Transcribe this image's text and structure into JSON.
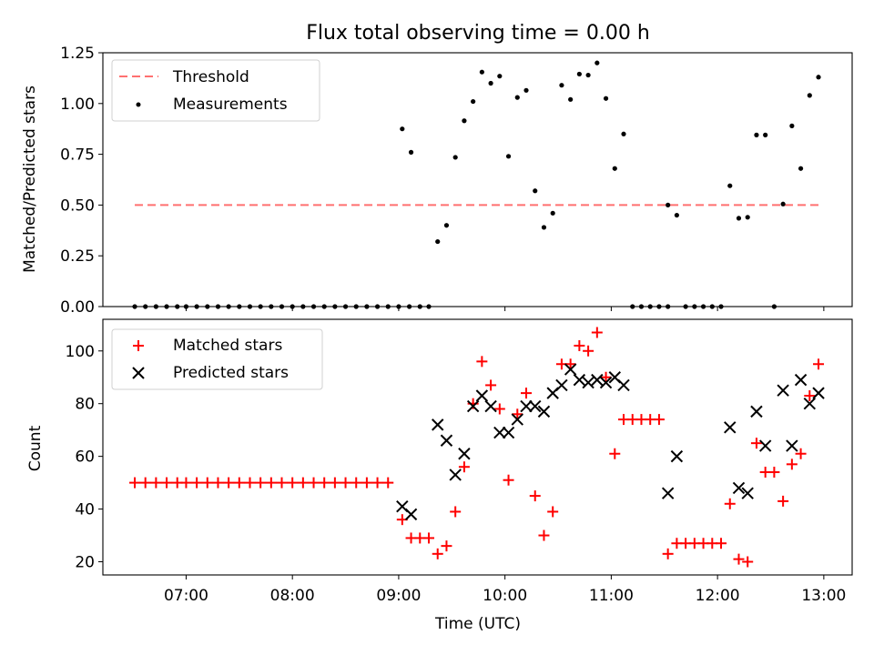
{
  "figure": {
    "title": "Flux total observing time = 0.00 h"
  },
  "chart_data": [
    {
      "type": "scatter",
      "panel": "top",
      "ylabel": "Matched/Predicted stars",
      "ylim": [
        0,
        1.25
      ],
      "yticks": [
        "0.00",
        "0.25",
        "0.50",
        "0.75",
        "1.00",
        "1.25"
      ],
      "xlim": [
        "06:13",
        "13:16"
      ],
      "legend_placement": "upper left",
      "threshold": {
        "name": "Threshold",
        "color": "#ff7070",
        "style": "dashed",
        "y": 0.5,
        "x": [
          "06:31",
          "12:57"
        ]
      },
      "series": [
        {
          "name": "Measurements",
          "color": "#000000",
          "marker": "dot",
          "points": [
            [
              "06:31",
              0.0
            ],
            [
              "06:37",
              0.0
            ],
            [
              "06:43",
              0.0
            ],
            [
              "06:49",
              0.0
            ],
            [
              "06:55",
              0.0
            ],
            [
              "07:00",
              0.0
            ],
            [
              "07:06",
              0.0
            ],
            [
              "07:12",
              0.0
            ],
            [
              "07:18",
              0.0
            ],
            [
              "07:24",
              0.0
            ],
            [
              "07:30",
              0.0
            ],
            [
              "07:36",
              0.0
            ],
            [
              "07:42",
              0.0
            ],
            [
              "07:48",
              0.0
            ],
            [
              "07:54",
              0.0
            ],
            [
              "08:00",
              0.0
            ],
            [
              "08:06",
              0.0
            ],
            [
              "08:12",
              0.0
            ],
            [
              "08:18",
              0.0
            ],
            [
              "08:24",
              0.0
            ],
            [
              "08:30",
              0.0
            ],
            [
              "08:36",
              0.0
            ],
            [
              "08:42",
              0.0
            ],
            [
              "08:48",
              0.0
            ],
            [
              "08:54",
              0.0
            ],
            [
              "09:00",
              0.0
            ],
            [
              "09:06",
              0.0
            ],
            [
              "09:02",
              0.875
            ],
            [
              "09:07",
              0.76
            ],
            [
              "09:12",
              0.0
            ],
            [
              "09:17",
              0.0
            ],
            [
              "09:22",
              0.32
            ],
            [
              "09:27",
              0.4
            ],
            [
              "09:32",
              0.735
            ],
            [
              "09:37",
              0.915
            ],
            [
              "09:42",
              1.01
            ],
            [
              "09:47",
              1.155
            ],
            [
              "09:52",
              1.1
            ],
            [
              "09:57",
              1.135
            ],
            [
              "10:02",
              0.74
            ],
            [
              "10:07",
              1.03
            ],
            [
              "10:12",
              1.065
            ],
            [
              "10:17",
              0.57
            ],
            [
              "10:22",
              0.39
            ],
            [
              "10:27",
              0.46
            ],
            [
              "10:32",
              1.09
            ],
            [
              "10:37",
              1.02
            ],
            [
              "10:42",
              1.145
            ],
            [
              "10:47",
              1.14
            ],
            [
              "10:52",
              1.2
            ],
            [
              "10:57",
              1.025
            ],
            [
              "11:02",
              0.68
            ],
            [
              "11:07",
              0.85
            ],
            [
              "11:12",
              0.0
            ],
            [
              "11:17",
              0.0
            ],
            [
              "11:22",
              0.0
            ],
            [
              "11:27",
              0.0
            ],
            [
              "11:32",
              0.0
            ],
            [
              "11:32",
              0.5
            ],
            [
              "11:37",
              0.45
            ],
            [
              "11:42",
              0.0
            ],
            [
              "11:47",
              0.0
            ],
            [
              "11:52",
              0.0
            ],
            [
              "11:57",
              0.0
            ],
            [
              "12:02",
              0.0
            ],
            [
              "12:07",
              0.595
            ],
            [
              "12:12",
              0.435
            ],
            [
              "12:17",
              0.44
            ],
            [
              "12:22",
              0.845
            ],
            [
              "12:27",
              0.845
            ],
            [
              "12:32",
              0.0
            ],
            [
              "12:37",
              0.505
            ],
            [
              "12:42",
              0.89
            ],
            [
              "12:47",
              0.68
            ],
            [
              "12:52",
              1.04
            ],
            [
              "12:57",
              1.13
            ]
          ]
        }
      ]
    },
    {
      "type": "scatter",
      "panel": "bottom",
      "xlabel": "Time (UTC)",
      "ylabel": "Count",
      "ylim": [
        15,
        112
      ],
      "yticks": [
        "20",
        "40",
        "60",
        "80",
        "100"
      ],
      "xlim": [
        "06:13",
        "13:16"
      ],
      "xticks": [
        "07:00",
        "08:00",
        "09:00",
        "10:00",
        "11:00",
        "12:00",
        "13:00"
      ],
      "legend_placement": "upper left",
      "series": [
        {
          "name": "Matched stars",
          "color": "#ff0000",
          "marker": "plus",
          "points": [
            [
              "06:31",
              50
            ],
            [
              "06:37",
              50
            ],
            [
              "06:43",
              50
            ],
            [
              "06:49",
              50
            ],
            [
              "06:55",
              50
            ],
            [
              "07:00",
              50
            ],
            [
              "07:06",
              50
            ],
            [
              "07:12",
              50
            ],
            [
              "07:18",
              50
            ],
            [
              "07:24",
              50
            ],
            [
              "07:30",
              50
            ],
            [
              "07:36",
              50
            ],
            [
              "07:42",
              50
            ],
            [
              "07:48",
              50
            ],
            [
              "07:54",
              50
            ],
            [
              "08:00",
              50
            ],
            [
              "08:06",
              50
            ],
            [
              "08:12",
              50
            ],
            [
              "08:18",
              50
            ],
            [
              "08:24",
              50
            ],
            [
              "08:30",
              50
            ],
            [
              "08:36",
              50
            ],
            [
              "08:42",
              50
            ],
            [
              "08:48",
              50
            ],
            [
              "08:54",
              50
            ],
            [
              "09:02",
              36
            ],
            [
              "09:07",
              29
            ],
            [
              "09:12",
              29
            ],
            [
              "09:17",
              29
            ],
            [
              "09:22",
              23
            ],
            [
              "09:27",
              26
            ],
            [
              "09:32",
              39
            ],
            [
              "09:37",
              56
            ],
            [
              "09:42",
              80
            ],
            [
              "09:47",
              96
            ],
            [
              "09:52",
              87
            ],
            [
              "09:57",
              78
            ],
            [
              "10:02",
              51
            ],
            [
              "10:07",
              76
            ],
            [
              "10:12",
              84
            ],
            [
              "10:17",
              45
            ],
            [
              "10:22",
              30
            ],
            [
              "10:27",
              39
            ],
            [
              "10:32",
              95
            ],
            [
              "10:37",
              95
            ],
            [
              "10:42",
              102
            ],
            [
              "10:47",
              100
            ],
            [
              "10:52",
              107
            ],
            [
              "10:57",
              90
            ],
            [
              "11:02",
              61
            ],
            [
              "11:07",
              74
            ],
            [
              "11:12",
              74
            ],
            [
              "11:17",
              74
            ],
            [
              "11:22",
              74
            ],
            [
              "11:27",
              74
            ],
            [
              "11:32",
              23
            ],
            [
              "11:37",
              27
            ],
            [
              "11:42",
              27
            ],
            [
              "11:47",
              27
            ],
            [
              "11:52",
              27
            ],
            [
              "11:57",
              27
            ],
            [
              "12:02",
              27
            ],
            [
              "12:07",
              42
            ],
            [
              "12:12",
              21
            ],
            [
              "12:17",
              20
            ],
            [
              "12:22",
              65
            ],
            [
              "12:27",
              54
            ],
            [
              "12:32",
              54
            ],
            [
              "12:37",
              43
            ],
            [
              "12:42",
              57
            ],
            [
              "12:47",
              61
            ],
            [
              "12:52",
              83
            ],
            [
              "12:57",
              95
            ]
          ]
        },
        {
          "name": "Predicted stars",
          "color": "#000000",
          "marker": "x",
          "points": [
            [
              "09:02",
              41
            ],
            [
              "09:07",
              38
            ],
            [
              "09:22",
              72
            ],
            [
              "09:27",
              66
            ],
            [
              "09:32",
              53
            ],
            [
              "09:37",
              61
            ],
            [
              "09:42",
              79
            ],
            [
              "09:47",
              83
            ],
            [
              "09:52",
              79
            ],
            [
              "09:57",
              69
            ],
            [
              "10:02",
              69
            ],
            [
              "10:07",
              74
            ],
            [
              "10:12",
              79
            ],
            [
              "10:17",
              79
            ],
            [
              "10:22",
              77
            ],
            [
              "10:27",
              84
            ],
            [
              "10:32",
              87
            ],
            [
              "10:37",
              93
            ],
            [
              "10:42",
              89
            ],
            [
              "10:47",
              88
            ],
            [
              "10:52",
              89
            ],
            [
              "10:57",
              88
            ],
            [
              "11:02",
              90
            ],
            [
              "11:07",
              87
            ],
            [
              "11:32",
              46
            ],
            [
              "11:37",
              60
            ],
            [
              "12:07",
              71
            ],
            [
              "12:12",
              48
            ],
            [
              "12:17",
              46
            ],
            [
              "12:22",
              77
            ],
            [
              "12:27",
              64
            ],
            [
              "12:37",
              85
            ],
            [
              "12:42",
              64
            ],
            [
              "12:47",
              89
            ],
            [
              "12:52",
              80
            ],
            [
              "12:57",
              84
            ]
          ]
        }
      ]
    }
  ]
}
